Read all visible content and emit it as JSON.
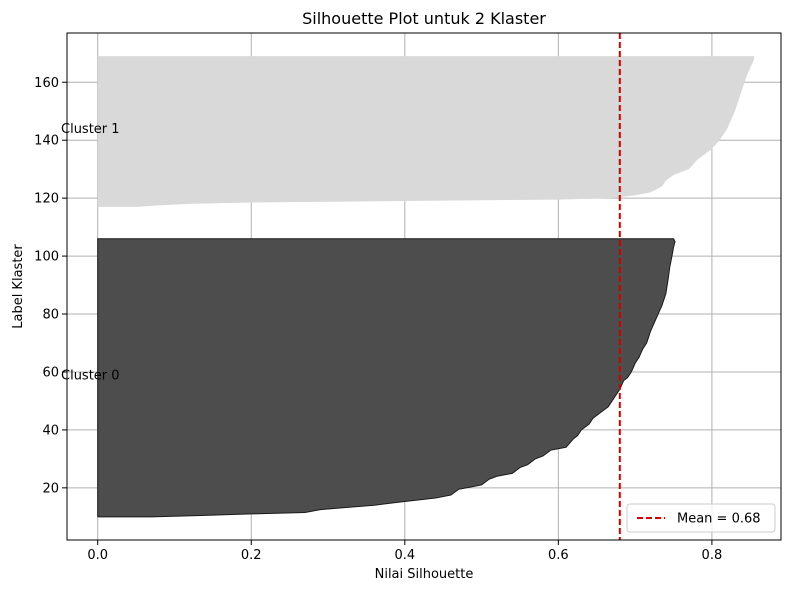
{
  "chart_data": {
    "type": "area",
    "title": "Silhouette Plot untuk 2 Klaster",
    "xlabel": "Nilai Silhouette",
    "ylabel": "Label Klaster",
    "xlim": [
      -0.04,
      0.89
    ],
    "ylim": [
      2,
      177
    ],
    "xticks": [
      0.0,
      0.2,
      0.4,
      0.6,
      0.8
    ],
    "xtick_labels": [
      "0.0",
      "0.2",
      "0.4",
      "0.6",
      "0.8"
    ],
    "yticks": [
      20,
      40,
      60,
      80,
      100,
      120,
      140,
      160
    ],
    "ytick_labels": [
      "20",
      "40",
      "60",
      "80",
      "100",
      "120",
      "140",
      "160"
    ],
    "grid": true,
    "legend_position": "bottom-right",
    "series": [
      {
        "label": "Cluster 0",
        "color": "#4d4d4d",
        "label_y": 59,
        "points": [
          [
            0.0,
            10
          ],
          [
            0.07,
            10
          ],
          [
            0.14,
            10.5
          ],
          [
            0.2,
            11
          ],
          [
            0.27,
            11.5
          ],
          [
            0.29,
            12.5
          ],
          [
            0.36,
            14
          ],
          [
            0.39,
            15
          ],
          [
            0.44,
            16.5
          ],
          [
            0.46,
            17.5
          ],
          [
            0.47,
            19.5
          ],
          [
            0.48,
            20
          ],
          [
            0.5,
            21
          ],
          [
            0.51,
            23
          ],
          [
            0.52,
            24
          ],
          [
            0.54,
            25
          ],
          [
            0.55,
            27
          ],
          [
            0.56,
            28
          ],
          [
            0.57,
            30
          ],
          [
            0.58,
            31
          ],
          [
            0.59,
            33
          ],
          [
            0.61,
            34
          ],
          [
            0.62,
            37
          ],
          [
            0.625,
            38
          ],
          [
            0.63,
            40
          ],
          [
            0.64,
            42
          ],
          [
            0.645,
            44
          ],
          [
            0.655,
            46
          ],
          [
            0.665,
            48
          ],
          [
            0.67,
            50
          ],
          [
            0.675,
            52
          ],
          [
            0.68,
            54
          ],
          [
            0.685,
            57
          ],
          [
            0.69,
            58
          ],
          [
            0.695,
            60
          ],
          [
            0.7,
            63
          ],
          [
            0.705,
            65
          ],
          [
            0.71,
            68
          ],
          [
            0.715,
            70
          ],
          [
            0.72,
            74
          ],
          [
            0.725,
            77
          ],
          [
            0.73,
            80
          ],
          [
            0.735,
            83
          ],
          [
            0.74,
            87
          ],
          [
            0.743,
            92
          ],
          [
            0.745,
            96
          ],
          [
            0.748,
            100
          ],
          [
            0.75,
            103
          ],
          [
            0.752,
            105
          ],
          [
            0.75,
            106
          ]
        ]
      },
      {
        "label": "Cluster 1",
        "color": "#d9d9d9",
        "label_y": 144,
        "points": [
          [
            0.0,
            117
          ],
          [
            0.05,
            117
          ],
          [
            0.08,
            117.5
          ],
          [
            0.12,
            118
          ],
          [
            0.2,
            118.5
          ],
          [
            0.4,
            119
          ],
          [
            0.6,
            119.5
          ],
          [
            0.67,
            120
          ],
          [
            0.7,
            121
          ],
          [
            0.72,
            122
          ],
          [
            0.735,
            124
          ],
          [
            0.74,
            126
          ],
          [
            0.75,
            128
          ],
          [
            0.76,
            129
          ],
          [
            0.77,
            130
          ],
          [
            0.78,
            133
          ],
          [
            0.79,
            135
          ],
          [
            0.8,
            137
          ],
          [
            0.81,
            140
          ],
          [
            0.82,
            144
          ],
          [
            0.825,
            147
          ],
          [
            0.83,
            150
          ],
          [
            0.835,
            154
          ],
          [
            0.84,
            158
          ],
          [
            0.845,
            162
          ],
          [
            0.85,
            165
          ],
          [
            0.855,
            168
          ],
          [
            0.855,
            169
          ]
        ]
      }
    ],
    "mean_line": {
      "value": 0.68,
      "label": "Mean = 0.68",
      "color": "#cc0000"
    }
  }
}
